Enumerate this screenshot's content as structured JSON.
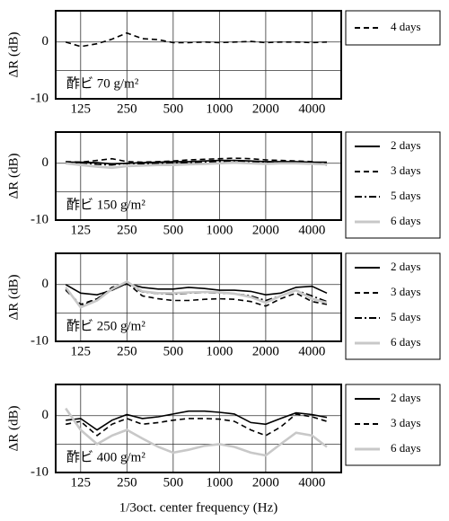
{
  "chart_data": [
    {
      "type": "line",
      "annotation": "酢ビ 70 g/m²",
      "y_label": "ΔR (dB)",
      "x": [
        100,
        125,
        160,
        200,
        250,
        315,
        400,
        500,
        630,
        800,
        1000,
        1250,
        1600,
        2000,
        2500,
        3150,
        4000,
        5000
      ],
      "xlim": [
        86,
        6200
      ],
      "x_log": true,
      "xticks": [
        125,
        250,
        500,
        1000,
        2000,
        4000
      ],
      "ylim": [
        -10,
        5.5
      ],
      "yticks": [
        -10,
        0
      ],
      "y_minor_grid": [
        -5
      ],
      "grid": true,
      "series": [
        {
          "name": "4 days",
          "color": "#000000",
          "dash": "dashed",
          "values": [
            0,
            -0.8,
            -0.3,
            0.5,
            1.6,
            0.6,
            0.4,
            -0.1,
            -0.1,
            0,
            -0.1,
            0,
            0.1,
            -0.1,
            0,
            0,
            -0.1,
            0
          ]
        }
      ]
    },
    {
      "type": "line",
      "annotation": "酢ビ 150 g/m²",
      "y_label": "ΔR (dB)",
      "x": [
        100,
        125,
        160,
        200,
        250,
        315,
        400,
        500,
        630,
        800,
        1000,
        1250,
        1600,
        2000,
        2500,
        3150,
        4000,
        5000
      ],
      "xlim": [
        86,
        6200
      ],
      "x_log": true,
      "xticks": [
        125,
        250,
        500,
        1000,
        2000,
        4000
      ],
      "ylim": [
        -10,
        5.5
      ],
      "yticks": [
        -10,
        0
      ],
      "y_minor_grid": [
        -5
      ],
      "grid": true,
      "series": [
        {
          "name": "2 days",
          "color": "#000000",
          "dash": "solid",
          "values": [
            0.2,
            0.2,
            0.1,
            -0.1,
            0,
            0.1,
            0.2,
            0.3,
            0.3,
            0.4,
            0.5,
            0.5,
            0.4,
            0.3,
            0.3,
            0.3,
            0.2,
            0.2
          ]
        },
        {
          "name": "3 days",
          "color": "#000000",
          "dash": "dashed",
          "values": [
            0.3,
            0.2,
            0.5,
            0.8,
            0.3,
            0.2,
            0.3,
            0.4,
            0.6,
            0.7,
            0.8,
            0.9,
            0.8,
            0.6,
            0.5,
            0.4,
            0.3,
            -0.3
          ]
        },
        {
          "name": "5 days",
          "color": "#000000",
          "dash": "dashdot",
          "values": [
            0,
            0.1,
            -0.2,
            -0.3,
            0,
            -0.1,
            0,
            0.1,
            0.1,
            0.2,
            0.3,
            0.3,
            0.2,
            0.1,
            0.1,
            0.1,
            0,
            0
          ]
        },
        {
          "name": "6 days",
          "color": "#c8c8c8",
          "dash": "solid",
          "values": [
            0,
            -0.3,
            -0.6,
            -0.8,
            -0.5,
            -0.4,
            -0.3,
            -0.3,
            -0.2,
            -0.1,
            0,
            0.1,
            0,
            -0.1,
            0,
            0,
            -0.1,
            -0.2
          ]
        }
      ]
    },
    {
      "type": "line",
      "annotation": "酢ビ 250 g/m²",
      "y_label": "ΔR (dB)",
      "x": [
        100,
        125,
        160,
        200,
        250,
        315,
        400,
        500,
        630,
        800,
        1000,
        1250,
        1600,
        2000,
        2500,
        3150,
        4000,
        5000
      ],
      "xlim": [
        86,
        6200
      ],
      "x_log": true,
      "xticks": [
        125,
        250,
        500,
        1000,
        2000,
        4000
      ],
      "ylim": [
        -10,
        5.5
      ],
      "yticks": [
        -10,
        0
      ],
      "y_minor_grid": [
        -5
      ],
      "grid": true,
      "series": [
        {
          "name": "2 days",
          "color": "#000000",
          "dash": "solid",
          "values": [
            0,
            -1.5,
            -1.8,
            -1,
            0.2,
            -0.5,
            -0.8,
            -0.8,
            -0.5,
            -0.7,
            -1,
            -1,
            -1.2,
            -1.8,
            -1.5,
            -0.5,
            -0.3,
            -1.5
          ]
        },
        {
          "name": "3 days",
          "color": "#000000",
          "dash": "dashed",
          "values": [
            -1,
            -3.5,
            -2.5,
            -0.5,
            0.3,
            -2,
            -2.5,
            -2.8,
            -2.8,
            -2.6,
            -2.5,
            -2.6,
            -3,
            -3.8,
            -2.5,
            -1.5,
            -3,
            -3.5
          ]
        },
        {
          "name": "5 days",
          "color": "#000000",
          "dash": "dashdot",
          "values": [
            -0.8,
            -3.8,
            -2.5,
            -0.8,
            0.1,
            -1.3,
            -1.6,
            -1.7,
            -1.5,
            -1.4,
            -1.5,
            -1.6,
            -2,
            -2.8,
            -2,
            -1,
            -2,
            -3
          ]
        },
        {
          "name": "6 days",
          "color": "#c8c8c8",
          "dash": "solid",
          "values": [
            -0.5,
            -4,
            -2.8,
            -0.8,
            0.5,
            -1.2,
            -1.5,
            -1.5,
            -1.4,
            -1.3,
            -1.4,
            -1.6,
            -2.2,
            -3.2,
            -2,
            -1,
            -2.5,
            -3.2
          ]
        }
      ]
    },
    {
      "type": "line",
      "annotation": "酢ビ 400 g/m²",
      "y_label": "ΔR (dB)",
      "x_label": "1/3oct. center frequency (Hz)",
      "x": [
        100,
        125,
        160,
        200,
        250,
        315,
        400,
        500,
        630,
        800,
        1000,
        1250,
        1600,
        2000,
        2500,
        3150,
        4000,
        5000
      ],
      "xlim": [
        86,
        6200
      ],
      "x_log": true,
      "xticks": [
        125,
        250,
        500,
        1000,
        2000,
        4000
      ],
      "ylim": [
        -10,
        5.5
      ],
      "yticks": [
        -10,
        0
      ],
      "y_minor_grid": [
        -5
      ],
      "grid": true,
      "series": [
        {
          "name": "2 days",
          "color": "#000000",
          "dash": "solid",
          "values": [
            -0.8,
            -0.5,
            -2.5,
            -0.8,
            0.2,
            -0.5,
            -0.2,
            0.3,
            0.8,
            0.8,
            0.6,
            0.3,
            -1.2,
            -1.5,
            -0.5,
            0.5,
            0.2,
            -0.3
          ]
        },
        {
          "name": "3 days",
          "color": "#000000",
          "dash": "dashed",
          "values": [
            -1.5,
            -1,
            -3.5,
            -1.5,
            -0.5,
            -1.5,
            -1.2,
            -0.8,
            -0.5,
            -0.5,
            -0.6,
            -1,
            -2.5,
            -3.5,
            -2,
            0.3,
            -0.2,
            -1
          ]
        },
        {
          "name": "6 days",
          "color": "#c8c8c8",
          "dash": "solid",
          "values": [
            1.3,
            -2.5,
            -5,
            -3.5,
            -2.5,
            -4,
            -5.5,
            -6.5,
            -6,
            -5.3,
            -5,
            -5.5,
            -6.5,
            -7,
            -5,
            -3,
            -3.5,
            -5.5
          ]
        }
      ]
    }
  ]
}
